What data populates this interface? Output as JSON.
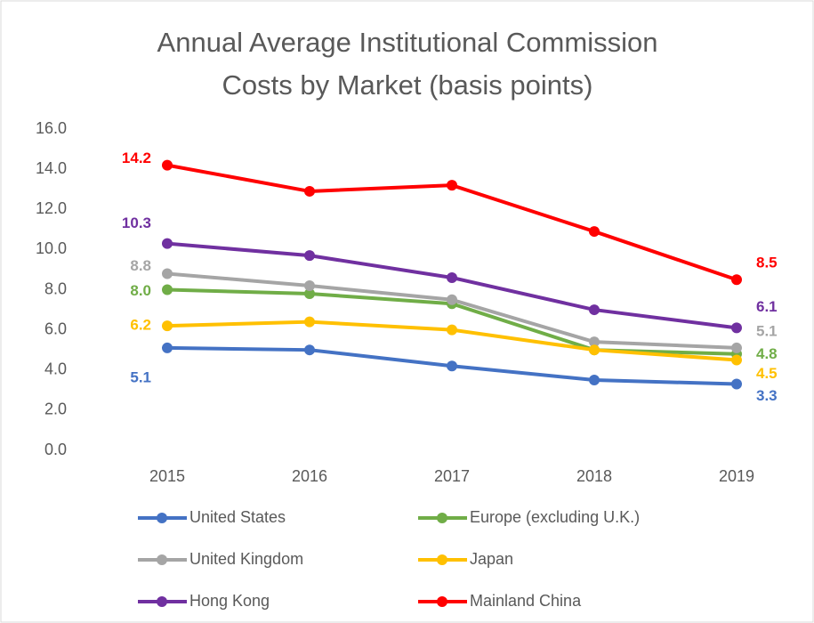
{
  "chart_data": {
    "type": "line",
    "title": [
      "Annual Average Institutional Commission",
      "Costs by Market (basis points)"
    ],
    "categories": [
      "2015",
      "2016",
      "2017",
      "2018",
      "2019"
    ],
    "ylim": [
      0,
      16
    ],
    "yticks": [
      {
        "value": 0,
        "label": "0.0"
      },
      {
        "value": 2,
        "label": "2.0"
      },
      {
        "value": 4,
        "label": "4.0"
      },
      {
        "value": 6,
        "label": "6.0"
      },
      {
        "value": 8,
        "label": "8.0"
      },
      {
        "value": 10,
        "label": "10.0"
      },
      {
        "value": 12,
        "label": "12.0"
      },
      {
        "value": 14,
        "label": "14.0"
      },
      {
        "value": 16,
        "label": "16.0"
      }
    ],
    "grid": false,
    "legend": "bottom",
    "series": [
      {
        "name": "United States",
        "color": "#4472c4",
        "values": [
          5.1,
          5.0,
          4.2,
          3.5,
          3.3
        ],
        "value_labels": [
          "5.1",
          null,
          null,
          null,
          "3.3"
        ]
      },
      {
        "name": "Europe (excluding U.K.)",
        "color": "#70ad47",
        "values": [
          8.0,
          7.8,
          7.3,
          5.0,
          4.8
        ],
        "value_labels": [
          "8.0",
          null,
          null,
          null,
          "4.8"
        ]
      },
      {
        "name": "United Kingdom",
        "color": "#a5a5a5",
        "values": [
          8.8,
          8.2,
          7.5,
          5.4,
          5.1
        ],
        "value_labels": [
          "8.8",
          null,
          null,
          null,
          "5.1"
        ]
      },
      {
        "name": "Japan",
        "color": "#ffc000",
        "values": [
          6.2,
          6.4,
          6.0,
          5.0,
          4.5
        ],
        "value_labels": [
          "6.2",
          null,
          null,
          null,
          "4.5"
        ]
      },
      {
        "name": "Hong Kong",
        "color": "#7030a0",
        "values": [
          10.3,
          9.7,
          8.6,
          7.0,
          6.1
        ],
        "value_labels": [
          "10.3",
          null,
          null,
          null,
          "6.1"
        ]
      },
      {
        "name": "Mainland China",
        "color": "#ff0000",
        "values": [
          14.2,
          12.9,
          13.2,
          10.9,
          8.5
        ],
        "value_labels": [
          "14.2",
          null,
          null,
          null,
          "8.5"
        ]
      }
    ]
  }
}
